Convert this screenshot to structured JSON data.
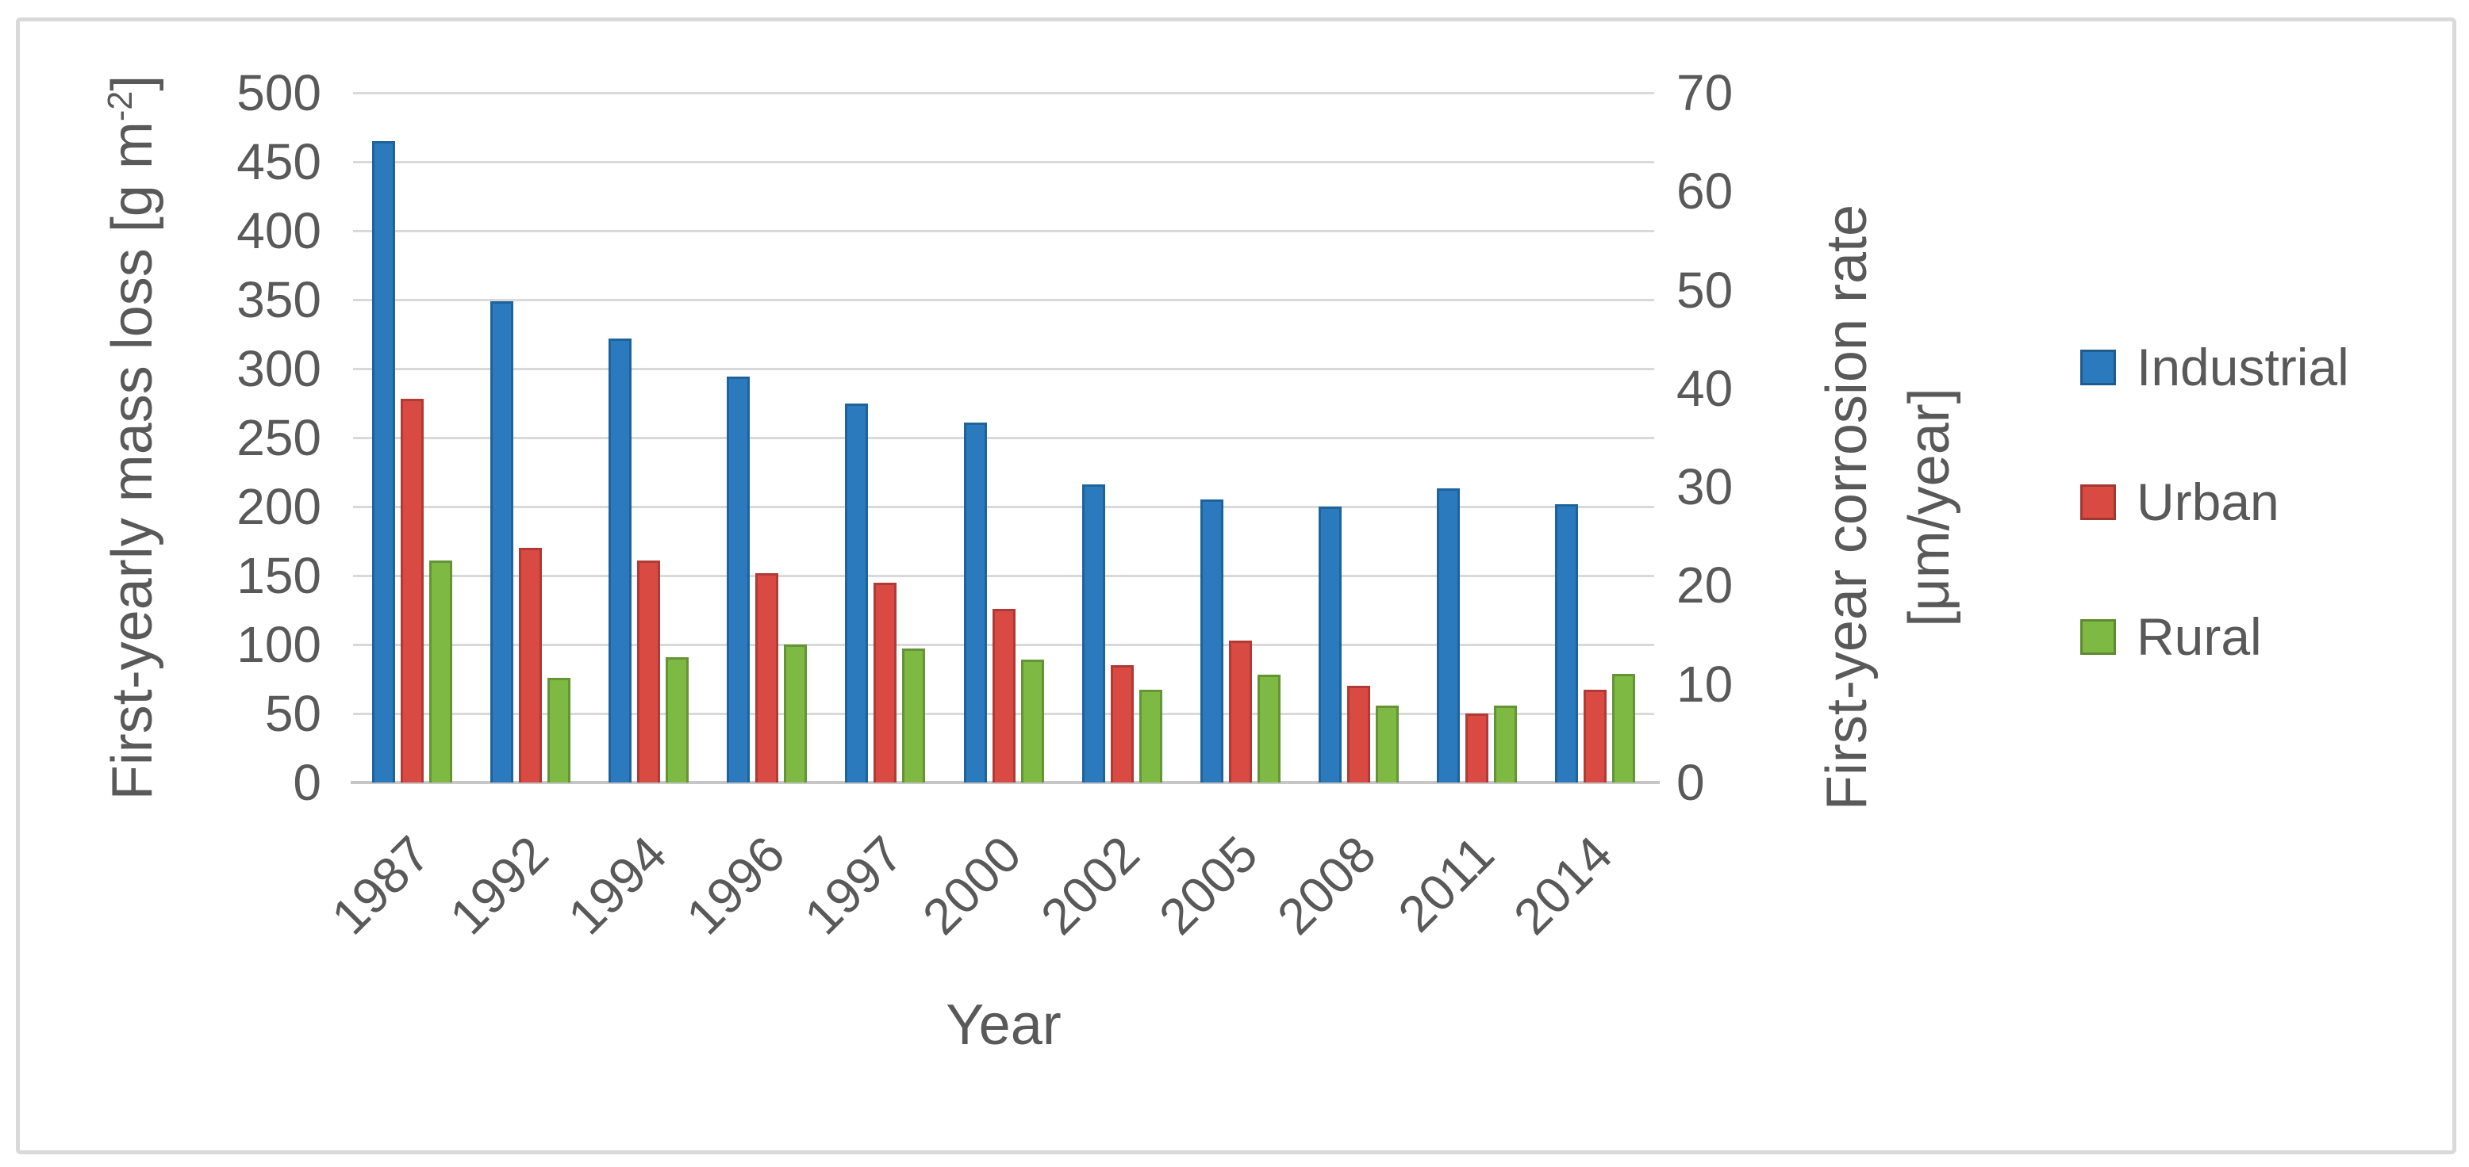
{
  "frame": {
    "background_color": "#FFFFFF",
    "border_color": "#D9D9D9"
  },
  "chart_data": {
    "type": "bar",
    "title": "",
    "categories": [
      "1987",
      "1992",
      "1994",
      "1996",
      "1997",
      "2000",
      "2002",
      "2005",
      "2008",
      "2011",
      "2014"
    ],
    "series": [
      {
        "name": "Industrial",
        "color": "#2A7ABD",
        "border": "#1E639C",
        "values": [
          465,
          349,
          322,
          294,
          275,
          261,
          216,
          205,
          200,
          213,
          202
        ]
      },
      {
        "name": "Urban",
        "color": "#D94A43",
        "border": "#B03A35",
        "values": [
          278,
          170,
          161,
          152,
          145,
          126,
          85,
          103,
          70,
          50,
          67
        ]
      },
      {
        "name": "Rural",
        "color": "#7EB943",
        "border": "#649434",
        "values": [
          161,
          76,
          91,
          100,
          97,
          89,
          67,
          78,
          56,
          56,
          79
        ]
      }
    ],
    "x_axis": {
      "label": "Year",
      "tick_rotation_deg": -45
    },
    "y_axis_left": {
      "label_prefix": "First-yearly mass loss [g m",
      "label_sup": "-2",
      "label_suffix": "]",
      "min": 0,
      "max": 500,
      "step": 50,
      "ticks": [
        "0",
        "50",
        "100",
        "150",
        "200",
        "250",
        "300",
        "350",
        "400",
        "450",
        "500"
      ]
    },
    "y_axis_right": {
      "label_line1": "First-year corrosion rate",
      "label_line2": "[μm/year]",
      "min": 0,
      "max": 70,
      "step": 10,
      "ticks": [
        "0",
        "10",
        "20",
        "30",
        "40",
        "50",
        "60",
        "70"
      ]
    },
    "grid": true,
    "legend_position": "right",
    "colors": {
      "text": "#595959",
      "gridline": "#D9D9D9",
      "axis_line": "#C6C6C6"
    }
  }
}
